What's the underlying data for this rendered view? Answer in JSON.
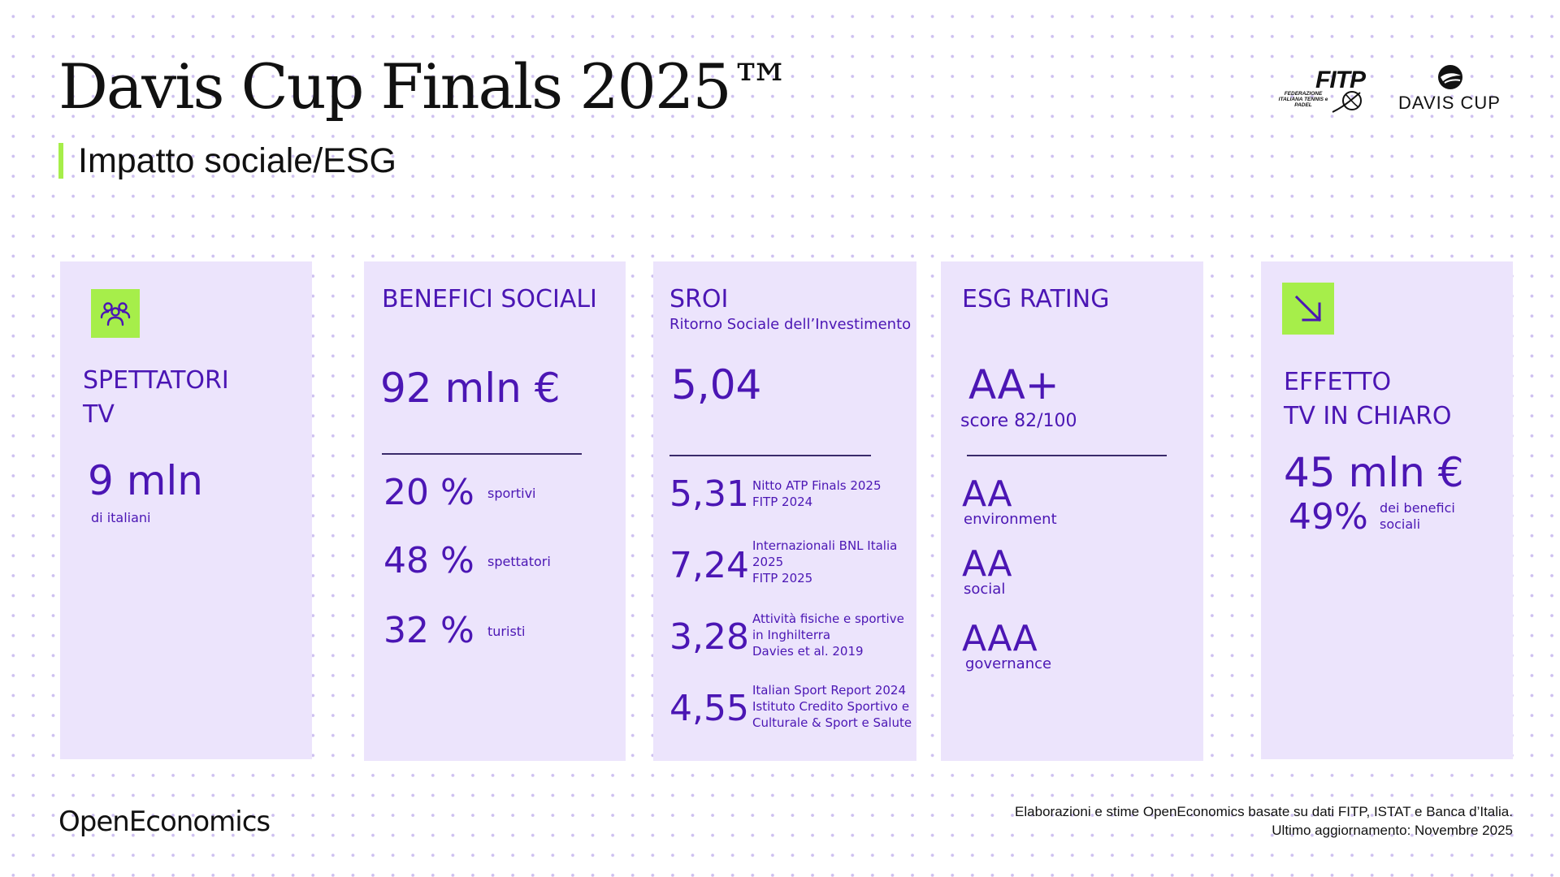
{
  "title": "Davis Cup Finals 2025™",
  "subtitle": "Impatto sociale/ESG",
  "logos": {
    "fitp_word": "FITP",
    "fitp_fine": "FEDERAZIONE ITALIANA TENNIS e PADEL",
    "davis_word": "DAVIS CUP"
  },
  "colors": {
    "accent": "#a6ee4a",
    "primary": "#4b16b4",
    "card_bg": "#ece4fc"
  },
  "spettatori": {
    "icon": "people-icon",
    "title_line1": "SPETTATORI",
    "title_line2": "TV",
    "value": "9 mln",
    "caption": "di italiani"
  },
  "benefici": {
    "title": "BENEFICI SOCIALI",
    "value": "92 mln €",
    "rows": [
      {
        "value": "20 %",
        "label": "sportivi"
      },
      {
        "value": "48 %",
        "label": "spettatori"
      },
      {
        "value": "32 %",
        "label": "turisti"
      }
    ]
  },
  "sroi": {
    "title": "SROI",
    "subtitle": "Ritorno Sociale dell’Investimento",
    "value": "5,04",
    "rows": [
      {
        "value": "5,31",
        "lines": [
          "Nitto ATP Finals 2025",
          "FITP 2024"
        ]
      },
      {
        "value": "7,24",
        "lines": [
          "Internazionali BNL Italia",
          "2025",
          "FITP 2025"
        ]
      },
      {
        "value": "3,28",
        "lines": [
          "Attività fisiche e sportive",
          "in Inghilterra",
          "Davies et al. 2019"
        ]
      },
      {
        "value": "4,55",
        "lines": [
          "Italian Sport Report 2024",
          "Istituto Credito Sportivo e",
          "Culturale & Sport e Salute"
        ]
      }
    ]
  },
  "esg": {
    "title": "ESG RATING",
    "value": "AA+",
    "score": "score 82/100",
    "rows": [
      {
        "value": "AA",
        "label": "environment"
      },
      {
        "value": "AA",
        "label": "social"
      },
      {
        "value": "AAA",
        "label": "governance"
      }
    ]
  },
  "effetto": {
    "icon": "arrow-down-right-icon",
    "title_line1": "EFFETTO",
    "title_line2": "TV IN CHIARO",
    "value": "45 mln €",
    "pct": "49%",
    "pct_label_line1": "dei benefici",
    "pct_label_line2": "sociali"
  },
  "footer": {
    "logo": "OpenEconomics",
    "note_line1": "Elaborazioni e stime OpenEconomics basate su dati FITP, ISTAT e Banca d’Italia.",
    "note_line2": "Ultimo aggiornamento: Novembre 2025"
  }
}
